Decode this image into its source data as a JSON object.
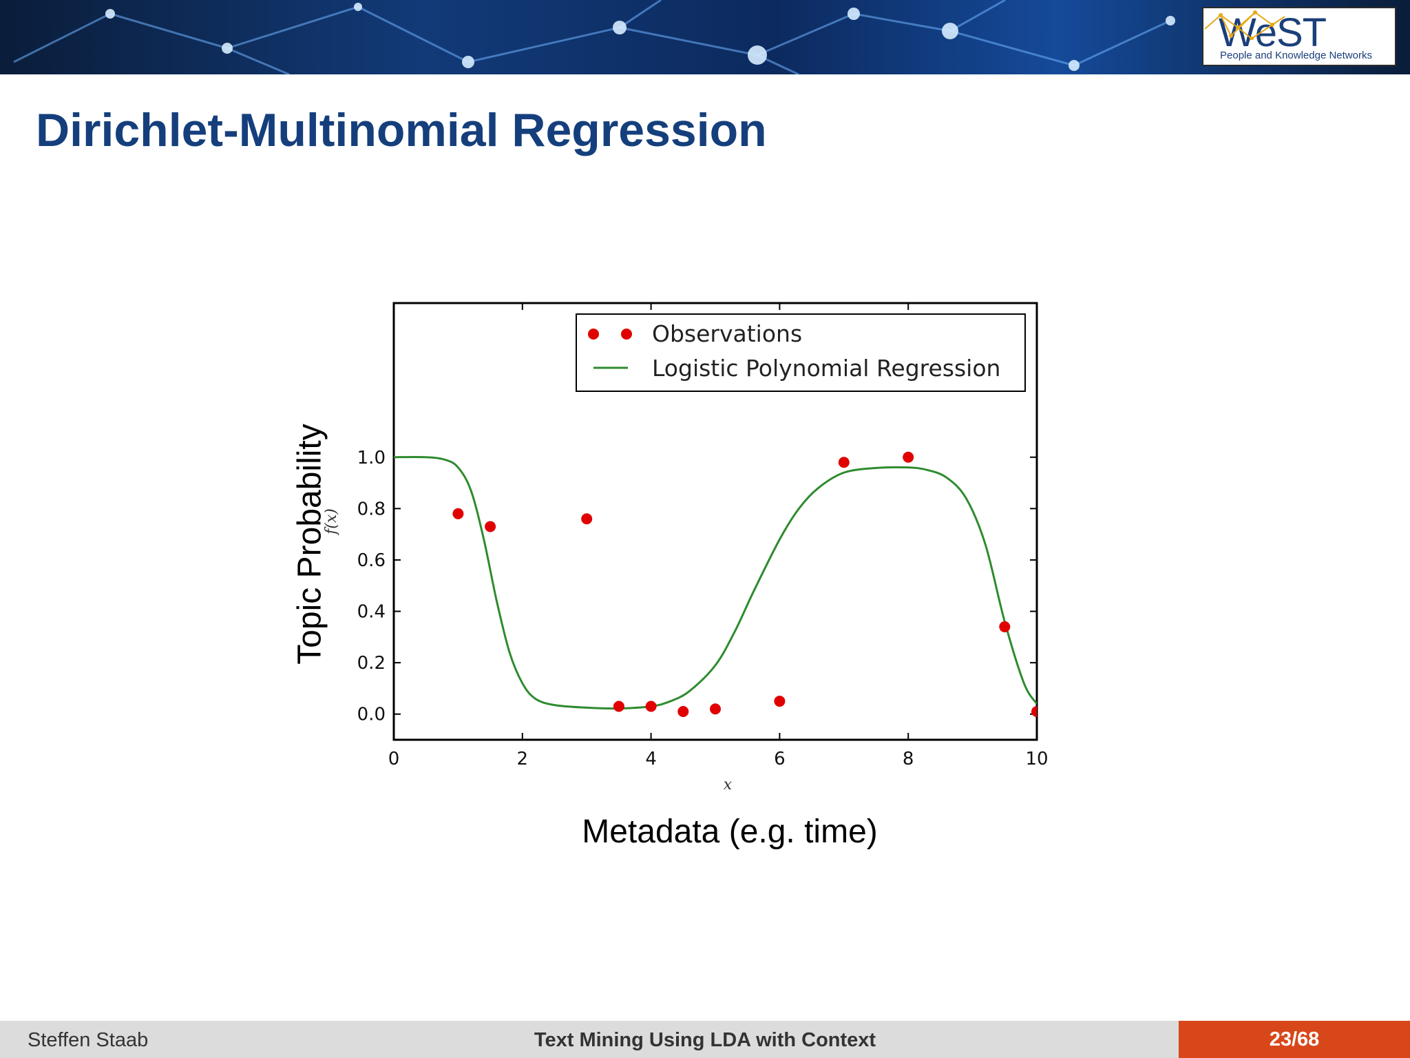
{
  "header": {
    "logo_word": "WeST",
    "logo_subtitle": "People and Knowledge Networks"
  },
  "slide": {
    "title": "Dirichlet-Multinomial Regression",
    "y_overlay_label": "Topic Probability",
    "x_overlay_label": "Metadata (e.g. time)"
  },
  "footer": {
    "author": "Steffen Staab",
    "title": "Text Mining Using LDA with Context",
    "page": "23/68"
  },
  "colors": {
    "title": "#153f7c",
    "observation": "#e00000",
    "curve": "#2e8b2e",
    "page_badge": "#d8471a"
  },
  "chart_data": {
    "type": "scatter",
    "title": "",
    "xlabel": "x",
    "ylabel": "f(x)",
    "xlim": [
      0,
      10
    ],
    "ylim": [
      -0.1,
      1.6
    ],
    "x_ticks": [
      "0",
      "2",
      "4",
      "6",
      "8",
      "10"
    ],
    "y_ticks": [
      "0.0",
      "0.2",
      "0.4",
      "0.6",
      "0.8",
      "1.0"
    ],
    "legend": {
      "position": "top-right",
      "entries": [
        "Observations",
        "Logistic Polynomial Regression"
      ]
    },
    "series": [
      {
        "name": "Observations",
        "kind": "scatter",
        "x": [
          1.0,
          1.5,
          3.0,
          3.5,
          4.0,
          4.5,
          5.0,
          6.0,
          7.0,
          8.0,
          9.5,
          10.0
        ],
        "y": [
          0.78,
          0.73,
          0.76,
          0.03,
          0.03,
          0.01,
          0.02,
          0.05,
          0.98,
          1.0,
          0.34,
          0.01
        ]
      },
      {
        "name": "Logistic Polynomial Regression",
        "kind": "line",
        "x": [
          0,
          0.5,
          0.8,
          1.0,
          1.2,
          1.4,
          1.6,
          1.8,
          2.0,
          2.2,
          2.5,
          3.0,
          3.5,
          4.0,
          4.3,
          4.6,
          5.0,
          5.3,
          5.6,
          6.0,
          6.3,
          6.6,
          7.0,
          7.5,
          8.0,
          8.3,
          8.6,
          8.9,
          9.2,
          9.5,
          9.8,
          10.0
        ],
        "y": [
          1.0,
          1.0,
          0.99,
          0.96,
          0.87,
          0.68,
          0.44,
          0.24,
          0.12,
          0.06,
          0.035,
          0.025,
          0.022,
          0.03,
          0.05,
          0.09,
          0.19,
          0.32,
          0.48,
          0.68,
          0.8,
          0.88,
          0.94,
          0.958,
          0.96,
          0.95,
          0.92,
          0.84,
          0.66,
          0.36,
          0.12,
          0.04
        ]
      }
    ]
  }
}
